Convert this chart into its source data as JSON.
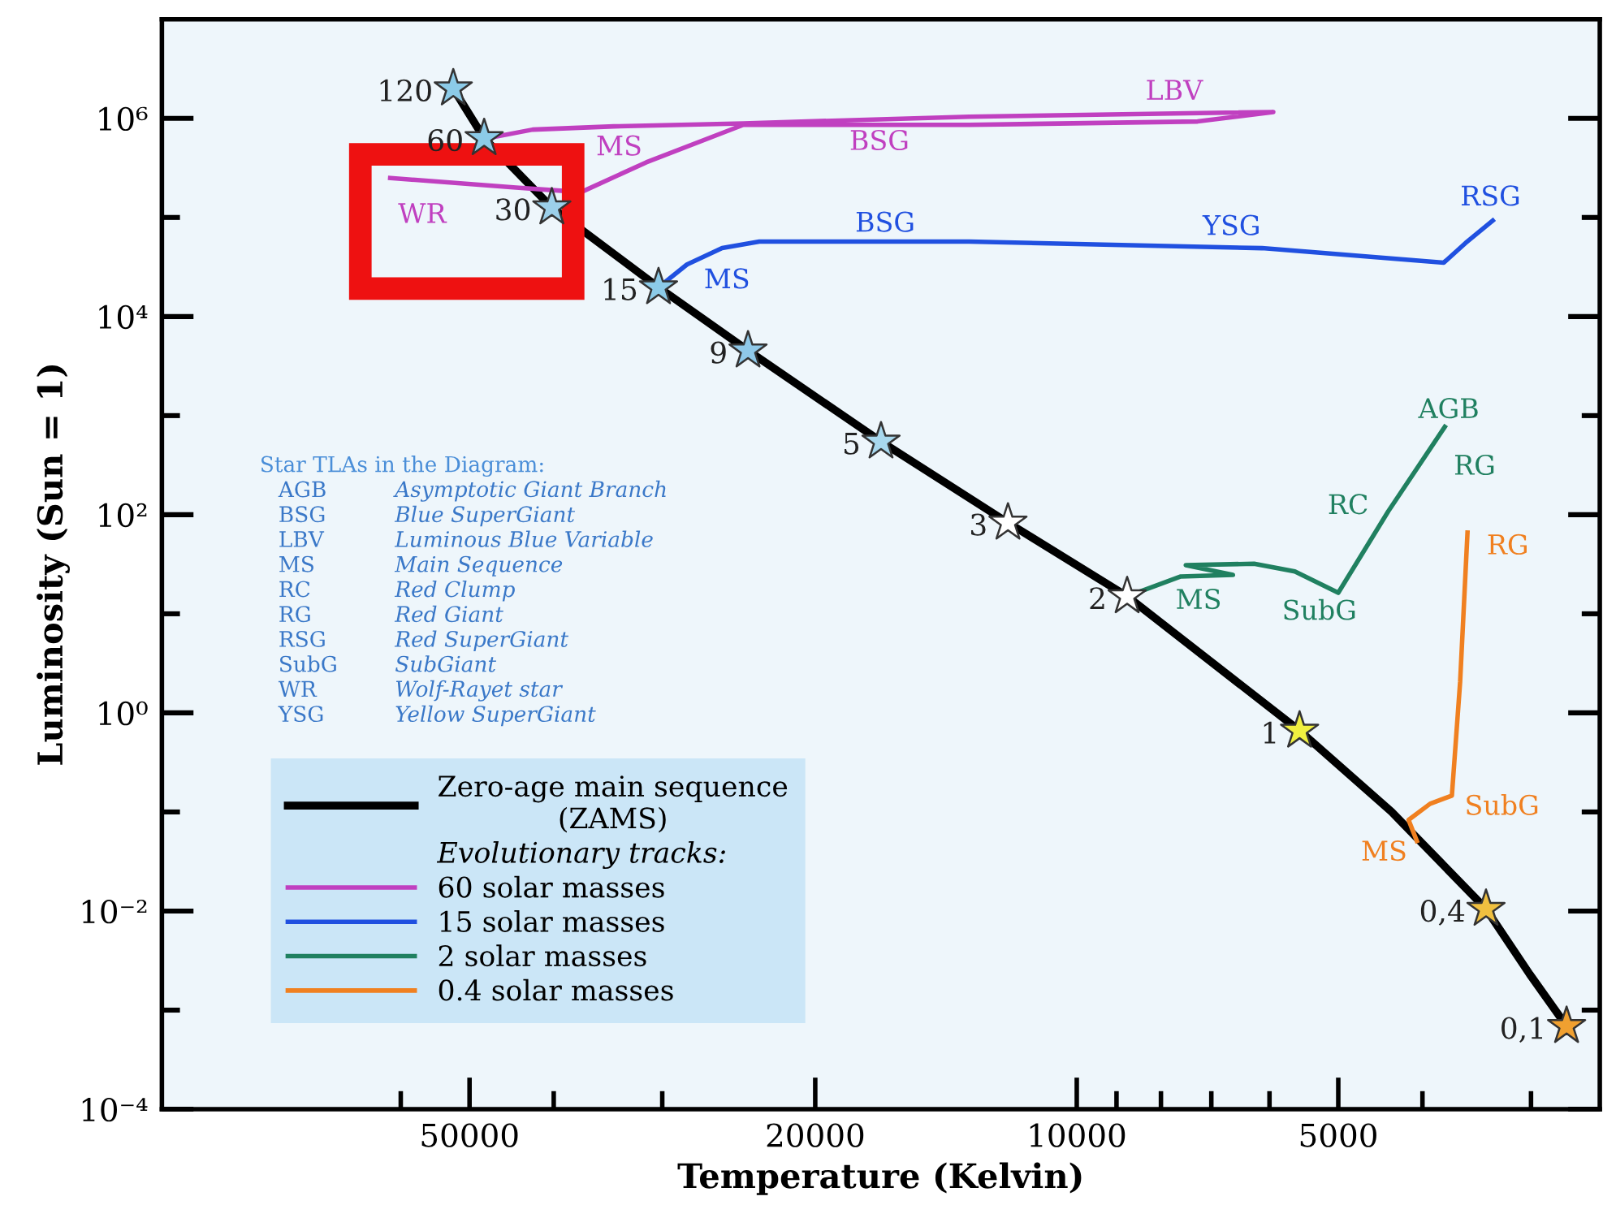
{
  "chart_data": {
    "type": "line",
    "xlabel": "Temperature (Kelvin)",
    "ylabel": "Luminosity (Sun = 1)",
    "log": "xy",
    "xlim": [
      113000,
      2500
    ],
    "ylim": [
      0.0001,
      10000000
    ],
    "xticks": [
      {
        "value": 60000,
        "label": null
      },
      50000,
      {
        "value": 40000,
        "label": null
      },
      {
        "value": 30000,
        "label": null
      },
      20000,
      10000,
      {
        "value": 9000,
        "label": null
      },
      {
        "value": 8000,
        "label": null
      },
      {
        "value": 7000,
        "label": null
      },
      {
        "value": 6000,
        "label": null
      },
      5000,
      {
        "value": 4000,
        "label": null
      },
      {
        "value": 3000,
        "label": null
      }
    ],
    "yticks": [
      {
        "value": 0.0001,
        "label": "10⁻⁴"
      },
      {
        "value": 0.001,
        "label": null
      },
      {
        "value": 0.01,
        "label": "10⁻²"
      },
      {
        "value": 0.1,
        "label": null
      },
      {
        "value": 1,
        "label": "10⁰"
      },
      {
        "value": 10,
        "label": null
      },
      {
        "value": 100,
        "label": "10²"
      },
      {
        "value": 1000,
        "label": null
      },
      {
        "value": 10000,
        "label": "10⁴"
      },
      {
        "value": 100000,
        "label": null
      },
      {
        "value": 1000000,
        "label": "10⁶"
      }
    ],
    "legend": "bottom left",
    "legend_title": "Evolutionary tracks:",
    "series": [
      {
        "name": "Zero-age main sequence\n(ZAMS)",
        "color": "#000000",
        "x": [
          52200,
          48100,
          40200,
          30300,
          23900,
          16800,
          12000,
          8750,
          5540,
          4340,
          3380,
          3010,
          2730
        ],
        "values": [
          2000000,
          630000,
          126000,
          19700,
          4530,
          547,
          83,
          15,
          0.66,
          0.1,
          0.0105,
          0.0023,
          0.00069
        ]
      },
      {
        "type": "scatter",
        "marker": "star",
        "colors": [
          "#8ccbe8",
          "#8ccbe8",
          "#9cd0ea",
          "#8ccbe8",
          "#8fc8e8",
          "#a8d8ee",
          "#ffffff",
          "#ffffff",
          "#f0f040",
          "#f0c040",
          "#f0a030"
        ],
        "x": [
          52200,
          48100,
          40200,
          30300,
          23900,
          16800,
          12000,
          8750,
          5540,
          3380,
          2730
        ],
        "values": [
          2000000,
          630000,
          126000,
          19700,
          4530,
          547,
          83,
          15,
          0.66,
          0.0105,
          0.00069
        ]
      },
      {
        "name": "60 solar masses",
        "color": "#c040c0",
        "x": [
          47700,
          42300,
          34100,
          24200,
          13300,
          5940,
          7260,
          13300,
          24200,
          31300,
          37200,
          44200,
          61700
        ],
        "values": [
          630000,
          770000,
          830000,
          890000,
          1040000,
          1160000,
          930000,
          860000,
          860000,
          360000,
          180000,
          200000,
          250000
        ]
      },
      {
        "name": "15 solar masses",
        "color": "#2050e0",
        "x": [
          30300,
          28100,
          25600,
          23200,
          13300,
          6120,
          3780,
          3570,
          3320
        ],
        "values": [
          19700,
          33500,
          49000,
          57000,
          57000,
          49000,
          35000,
          55000,
          93000
        ]
      },
      {
        "name": "2 solar masses",
        "color": "#208060",
        "x": [
          8750,
          7590,
          6610,
          7490,
          6250,
          5610,
          5000,
          4380,
          3770
        ],
        "values": [
          15,
          23.8,
          24.7,
          31,
          32,
          26.7,
          16.3,
          108,
          770
        ]
      },
      {
        "name": "0.4 solar masses",
        "color": "#f08020",
        "x": [
          4060,
          4150,
          3920,
          3700,
          3620,
          3550
        ],
        "values": [
          0.051,
          0.083,
          0.121,
          0.146,
          2.05,
          66
        ]
      }
    ],
    "annotations": [
      "Star TLAs in the Diagram:",
      "AGB",
      "Asymptotic Giant Branch",
      "BSG",
      "Blue SuperGiant",
      "LBV",
      "Luminous Blue Variable",
      "MS",
      "Main Sequence",
      "RC",
      "Red Clump",
      "RG",
      "Red Giant",
      "RSG",
      "Red SuperGiant",
      "SubG",
      "SubGiant",
      "WR",
      "Wolf-Rayet star",
      "YSG",
      "Yellow SuperGiant",
      "LBV",
      "BSG",
      "MS",
      "WR",
      "BSG",
      "MS",
      "YSG",
      "RSG",
      "AGB",
      "RG",
      "RC",
      "MS",
      "SubG",
      "RG",
      "SubG",
      "MS",
      {
        "text": "120",
        "x": 52200,
        "y": 2000000
      },
      {
        "text": "60",
        "x": 48100,
        "y": 630000
      },
      {
        "text": "30",
        "x": 40200,
        "y": 126000
      },
      {
        "text": "15",
        "x": 30300,
        "y": 19700
      },
      {
        "text": "9",
        "x": 23900,
        "y": 4530
      },
      {
        "text": "5",
        "x": 16800,
        "y": 547
      },
      {
        "text": "3",
        "x": 12000,
        "y": 83
      },
      {
        "text": "2",
        "x": 8750,
        "y": 15
      },
      {
        "text": "1",
        "x": 5540,
        "y": 0.66
      },
      {
        "text": "0,4",
        "x": 3380,
        "y": 0.0105
      },
      {
        "text": "0,1",
        "x": 2730,
        "y": 0.00069
      }
    ]
  }
}
